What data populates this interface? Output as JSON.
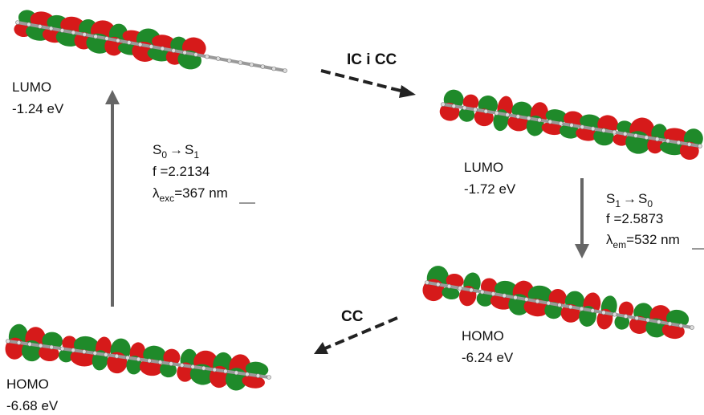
{
  "orbitals": [
    {
      "label": "LUMO",
      "energy": "-1.24 eV"
    },
    {
      "label": "LUMO",
      "energy": "-1.72 eV"
    },
    {
      "label": "HOMO",
      "energy": "-6.24 eV"
    },
    {
      "label": "HOMO",
      "energy": "-6.68 eV"
    }
  ],
  "transitions": [
    {
      "states": [
        "S",
        "0",
        "→",
        "S",
        "1"
      ],
      "f": "f =2.2134",
      "lambda": [
        "λ",
        "exc",
        "=367 nm"
      ]
    },
    {
      "states": [
        "S",
        "1",
        "→",
        "S",
        "0"
      ],
      "f": "f =2.5873",
      "lambda": [
        "λ",
        "em",
        "=532 nm"
      ]
    }
  ],
  "arrows": [
    {
      "label": "IC i CC"
    },
    {
      "label": "CC"
    }
  ]
}
